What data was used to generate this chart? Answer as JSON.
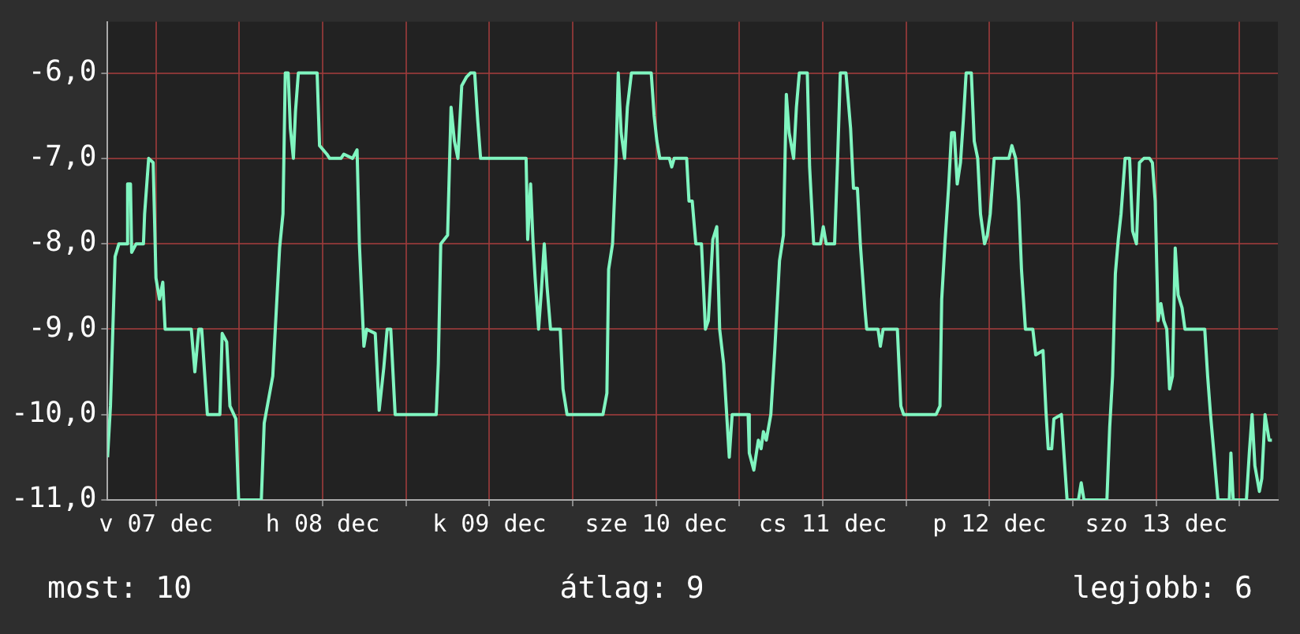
{
  "chart_data": {
    "type": "line",
    "x": [
      "--12-07T05:02",
      "--12-07T05:27",
      "--12-07T06:07",
      "--12-07T06:40",
      "--12-07T07:45",
      "--12-07T07:55",
      "--12-07T08:20",
      "--12-07T08:30",
      "--12-07T09:09",
      "--12-07T10:12",
      "--12-07T10:22",
      "--12-07T10:57",
      "--12-07T11:36",
      "--12-07T12:00",
      "--12-07T12:30",
      "--12-07T12:59",
      "--12-07T13:19",
      "--12-07T17:05",
      "--12-07T17:36",
      "--12-07T18:10",
      "--12-07T18:35",
      "--12-07T19:24",
      "--12-07T21:12",
      "--12-07T21:32",
      "--12-07T22:11",
      "--12-07T22:39",
      "--12-07T23:30",
      "--12-07T23:54",
      "--12-08T03:10",
      "--12-08T03:35",
      "--12-08T04:49",
      "--12-08T05:48",
      "--12-08T06:17",
      "--12-08T06:37",
      "--12-08T07:02",
      "--12-08T07:21",
      "--12-08T07:47",
      "--12-08T08:05",
      "--12-08T08:30",
      "--12-08T11:12",
      "--12-08T11:33",
      "--12-08T12:36",
      "--12-08T13:00",
      "--12-08T14:38",
      "--12-08T15:03",
      "--12-08T16:18",
      "--12-08T16:57",
      "--12-08T17:17",
      "--12-08T17:56",
      "--12-08T18:20",
      "--12-08T19:34",
      "--12-08T20:08",
      "--12-08T20:48",
      "--12-08T21:17",
      "--12-08T21:48",
      "--12-08T22:26",
      "--12-09T04:21",
      "--12-09T04:39",
      "--12-09T05:00",
      "--12-09T05:59",
      "--12-09T06:29",
      "--12-09T06:58",
      "--12-09T07:28",
      "--12-09T08:01",
      "--12-09T08:41",
      "--12-09T09:16",
      "--12-09T09:53",
      "--12-09T10:19",
      "--12-09T10:44",
      "--12-09T17:17",
      "--12-09T17:31",
      "--12-09T17:56",
      "--12-09T18:16",
      "--12-09T18:35",
      "--12-09T19:05",
      "--12-09T19:29",
      "--12-09T19:54",
      "--12-09T20:18",
      "--12-09T20:48",
      "--12-09T22:12",
      "--12-09T22:36",
      "--12-09T23:11",
      "--12-10T04:21",
      "--12-10T04:55",
      "--12-10T05:10",
      "--12-10T05:44",
      "--12-10T06:13",
      "--12-10T06:33",
      "--12-10T06:58",
      "--12-10T07:28",
      "--12-10T07:52",
      "--12-10T08:27",
      "--12-10T11:18",
      "--12-10T11:43",
      "--12-10T12:07",
      "--12-10T12:32",
      "--12-10T13:55",
      "--12-10T14:15",
      "--12-10T14:36",
      "--12-10T16:24",
      "--12-10T16:44",
      "--12-10T17:12",
      "--12-10T17:43",
      "--12-10T18:32",
      "--12-10T19:06",
      "--12-10T19:31",
      "--12-10T20:10",
      "--12-10T20:44",
      "--12-10T21:09",
      "--12-10T21:43",
      "--12-10T22:32",
      "--12-10T22:57",
      "--12-11T01:15",
      "--12-11T01:25",
      "--12-11T02:04",
      "--12-11T02:43",
      "--12-11T03:07",
      "--12-11T03:27",
      "--12-11T03:52",
      "--12-11T04:31",
      "--12-11T05:05",
      "--12-11T05:46",
      "--12-11T06:20",
      "--12-11T06:45",
      "--12-11T07:09",
      "--12-11T07:48",
      "--12-11T08:12",
      "--12-11T08:37",
      "--12-11T09:46",
      "--12-11T10:06",
      "--12-11T10:41",
      "--12-11T11:40",
      "--12-11T12:04",
      "--12-11T12:29",
      "--12-11T13:42",
      "--12-11T14:07",
      "--12-11T14:31",
      "--12-11T15:20",
      "--12-11T16:00",
      "--12-11T16:25",
      "--12-11T16:59",
      "--12-11T17:24",
      "--12-11T18:03",
      "--12-11T18:19",
      "--12-11T19:57",
      "--12-11T20:17",
      "--12-11T20:41",
      "--12-11T22:44",
      "--12-11T23:14",
      "--12-11T23:38",
      "--12-12T04:18",
      "--12-12T04:52",
      "--12-12T05:07",
      "--12-12T05:37",
      "--12-12T06:06",
      "--12-12T06:32",
      "--12-12T06:56",
      "--12-12T07:21",
      "--12-12T07:49",
      "--12-12T08:14",
      "--12-12T08:38",
      "--12-12T09:23",
      "--12-12T09:48",
      "--12-12T10:18",
      "--12-12T10:42",
      "--12-12T11:17",
      "--12-12T11:41",
      "--12-12T12:06",
      "--12-12T12:40",
      "--12-12T14:47",
      "--12-12T15:13",
      "--12-12T15:46",
      "--12-12T16:12",
      "--12-12T16:36",
      "--12-12T17:10",
      "--12-12T18:14",
      "--12-12T18:39",
      "--12-12T19:42",
      "--12-12T20:07",
      "--12-12T20:27",
      "--12-12T20:57",
      "--12-12T21:16",
      "--12-12T22:21",
      "--12-12T22:45",
      "--12-12T23:10",
      "--12-13T00:48",
      "--12-13T01:12",
      "--12-13T01:36",
      "--12-13T04:54",
      "--12-13T05:18",
      "--12-13T05:43",
      "--12-13T06:07",
      "--12-13T06:32",
      "--12-13T06:56",
      "--12-13T07:31",
      "--12-13T08:10",
      "--12-13T08:36",
      "--12-13T09:09",
      "--12-13T09:35",
      "--12-13T10:13",
      "--12-13T11:02",
      "--12-13T11:27",
      "--12-13T11:51",
      "--12-13T12:16",
      "--12-13T12:40",
      "--12-13T13:05",
      "--12-13T13:31",
      "--12-13T13:55",
      "--12-13T14:20",
      "--12-13T14:44",
      "--12-13T15:09",
      "--12-13T15:43",
      "--12-13T16:08",
      "--12-13T18:59",
      "--12-13T19:24",
      "--12-13T19:49",
      "--12-13T20:18",
      "--12-13T20:53",
      "--12-13T22:31",
      "--12-13T22:45",
      "--12-13T23:05",
      "--12-14T00:59",
      "--12-14T01:24",
      "--12-14T01:48",
      "--12-14T02:12",
      "--12-14T02:51",
      "--12-14T03:12",
      "--12-14T03:40",
      "--12-14T04:15",
      "--12-14T04:39"
    ],
    "series": [
      {
        "color": "#80f5c0",
        "values": [
          -10.5,
          -9.9,
          -8.15,
          -8.0,
          -8.0,
          -7.3,
          -7.3,
          -8.1,
          -8.0,
          -8.0,
          -7.65,
          -7.0,
          -7.05,
          -8.4,
          -8.65,
          -8.45,
          -9.0,
          -9.0,
          -9.5,
          -9.0,
          -9.0,
          -10.0,
          -10.0,
          -9.05,
          -9.15,
          -9.9,
          -10.05,
          -11.0,
          -11.0,
          -10.1,
          -9.55,
          -8.05,
          -7.65,
          -6.0,
          -6.0,
          -6.65,
          -7.0,
          -6.45,
          -6.0,
          -6.0,
          -6.85,
          -6.95,
          -7.0,
          -7.0,
          -6.95,
          -7.0,
          -6.9,
          -8.0,
          -9.2,
          -9.0,
          -9.05,
          -9.95,
          -9.45,
          -9.0,
          -9.0,
          -10.0,
          -10.0,
          -9.4,
          -8.0,
          -7.9,
          -6.4,
          -6.8,
          -7.0,
          -6.15,
          -6.05,
          -6.0,
          -6.0,
          -6.55,
          -7.0,
          -7.0,
          -7.95,
          -7.3,
          -7.95,
          -8.4,
          -9.0,
          -8.55,
          -8.0,
          -8.5,
          -9.0,
          -9.0,
          -9.7,
          -10.0,
          -10.0,
          -9.75,
          -8.3,
          -8.0,
          -7.05,
          -6.0,
          -6.7,
          -7.0,
          -6.4,
          -6.0,
          -6.0,
          -6.5,
          -6.8,
          -7.0,
          -7.0,
          -7.1,
          -7.0,
          -7.0,
          -7.5,
          -7.5,
          -8.0,
          -8.0,
          -9.0,
          -8.9,
          -7.95,
          -7.8,
          -9.0,
          -9.4,
          -10.5,
          -10.0,
          -10.0,
          -10.45,
          -10.65,
          -10.3,
          -10.4,
          -10.2,
          -10.3,
          -10.0,
          -9.25,
          -8.2,
          -7.9,
          -6.25,
          -6.7,
          -7.0,
          -6.4,
          -6.0,
          -6.0,
          -7.1,
          -8.0,
          -8.0,
          -7.8,
          -8.0,
          -8.0,
          -7.05,
          -6.0,
          -6.0,
          -6.65,
          -7.35,
          -7.35,
          -8.0,
          -8.75,
          -9.0,
          -9.0,
          -9.2,
          -9.0,
          -9.0,
          -9.9,
          -10.0,
          -10.0,
          -9.9,
          -8.65,
          -7.95,
          -7.35,
          -6.7,
          -6.7,
          -7.3,
          -7.05,
          -6.55,
          -6.0,
          -6.0,
          -6.8,
          -7.0,
          -7.65,
          -8.0,
          -7.9,
          -7.65,
          -7.0,
          -7.0,
          -6.85,
          -7.0,
          -7.5,
          -8.3,
          -9.0,
          -9.0,
          -9.3,
          -9.25,
          -9.95,
          -10.4,
          -10.4,
          -10.05,
          -10.0,
          -10.5,
          -11.0,
          -11.0,
          -10.8,
          -11.0,
          -11.0,
          -10.15,
          -9.55,
          -8.35,
          -7.95,
          -7.65,
          -7.0,
          -7.0,
          -7.85,
          -8.0,
          -7.05,
          -7.0,
          -7.0,
          -7.05,
          -7.5,
          -8.9,
          -8.7,
          -8.9,
          -9.0,
          -9.7,
          -9.55,
          -8.05,
          -8.6,
          -8.75,
          -9.0,
          -9.0,
          -9.55,
          -10.0,
          -10.45,
          -11.0,
          -11.0,
          -10.45,
          -11.0,
          -11.0,
          -10.45,
          -10.0,
          -10.6,
          -10.9,
          -10.75,
          -10.0,
          -10.3,
          -10.3
        ]
      }
    ],
    "xlim": [
      "--12-07T05:02",
      "--12-14T05:31"
    ],
    "xticks": [
      {
        "value": "--12-07T12:00",
        "label": "v 07 dec"
      },
      {
        "value": "--12-08T00:00",
        "label": null
      },
      {
        "value": "--12-08T12:00",
        "label": "h 08 dec"
      },
      {
        "value": "--12-09T00:00",
        "label": null
      },
      {
        "value": "--12-09T12:00",
        "label": "k 09 dec"
      },
      {
        "value": "--12-10T00:00",
        "label": null
      },
      {
        "value": "--12-10T12:00",
        "label": "sze 10 dec"
      },
      {
        "value": "--12-11T00:00",
        "label": null
      },
      {
        "value": "--12-11T12:00",
        "label": "cs 11 dec"
      },
      {
        "value": "--12-12T00:00",
        "label": null
      },
      {
        "value": "--12-12T12:00",
        "label": "p 12 dec"
      },
      {
        "value": "--12-13T00:00",
        "label": null
      },
      {
        "value": "--12-13T12:00",
        "label": "szo 13 dec"
      },
      {
        "value": "--12-14T00:00",
        "label": null
      }
    ],
    "ylim": [
      -11,
      -5.4
    ],
    "yticks": [
      {
        "value": -11,
        "label": "-11,0"
      },
      {
        "value": -10,
        "label": "-10,0"
      },
      {
        "value": -9,
        "label": "-9,0"
      },
      {
        "value": -8,
        "label": "-8,0"
      },
      {
        "value": -7,
        "label": "-7,0"
      },
      {
        "value": -6,
        "label": "-6,0"
      }
    ],
    "grid": true,
    "legend": false,
    "marker": "none",
    "line_style": "solid",
    "annotations": [
      "most: 10",
      "átlag: 9",
      "legjobb: 6"
    ]
  }
}
